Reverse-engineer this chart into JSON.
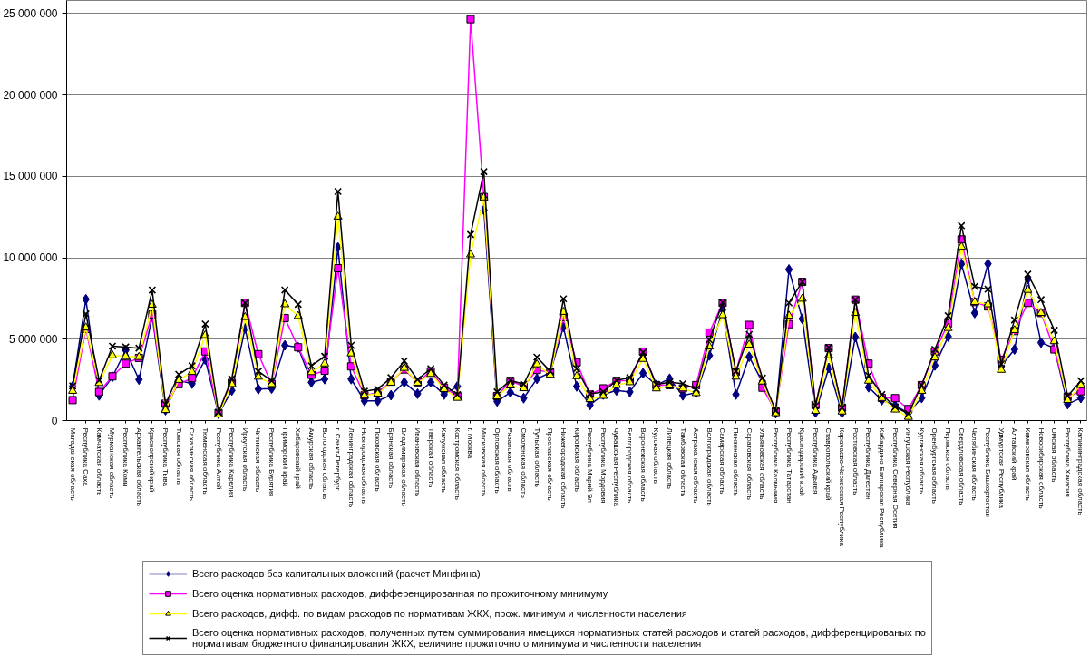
{
  "chart_data": {
    "type": "line",
    "categories": [
      "Магаданская область",
      "Республика Саха",
      "Камчатская область",
      "Мурманская область",
      "Республика Коми",
      "Архангельская область",
      "Красноярский край",
      "Республика Тыва",
      "Томская область",
      "Сахалинская область",
      "Тюменская область",
      "Республика Алтай",
      "Республика Карелия",
      "Иркутская область",
      "Читинская область",
      "Республика Бурятия",
      "Приморский край",
      "Хабаровский край",
      "Амурская область",
      "Вологодская область",
      "г. Санкт-Петербург",
      "Ленинградская область",
      "Новгородская область",
      "Псковская область",
      "Брянская область",
      "Владимирская область",
      "Ивановская область",
      "Тверская область",
      "Калужская область",
      "Костромская область",
      "г. Москва",
      "Московская область",
      "Орловская область",
      "Рязанская область",
      "Смоленская область",
      "Тульская область",
      "Ярославская область",
      "Нижегородская область",
      "Кировская область",
      "Республика Марий Эл",
      "Республика Мордовия",
      "Чувашская Республика",
      "Белгородская область",
      "Воронежская область",
      "Курская область",
      "Липецкая область",
      "Тамбовская область",
      "Астраханская область",
      "Волгоградская область",
      "Самарская область",
      "Пензенская область",
      "Саратовская область",
      "Ульяновская область",
      "Республика Калмыкия",
      "Республика Татарстан",
      "Краснодарский край",
      "Республика Адыгея",
      "Ставропольский край",
      "Карачаево-Черкесская Республика",
      "Ростовская область",
      "Республика Дагестан",
      "Кабардино-Балкарская Республика",
      "Республика Северная Осетия",
      "Ингушская Республика",
      "Курганская область",
      "Оренбургская область",
      "Пермская область",
      "Свердловская область",
      "Челябинская область",
      "Республика Башкортостан",
      "Удмуртская Республика",
      "Алтайский край",
      "Кемеровская область",
      "Новосибирская область",
      "Омская область",
      "Республика Хакасия",
      "Калининградская область"
    ],
    "series": [
      {
        "name": "Всего расходов без капитальных вложений (расчет Минфина)",
        "color": "#000080",
        "marker": "diamond",
        "values": [
          2100000,
          7450000,
          1550000,
          2690000,
          4320000,
          2520000,
          6390000,
          640000,
          2470000,
          2270000,
          3750000,
          420000,
          1850000,
          5660000,
          1930000,
          1970000,
          4620000,
          4500000,
          2350000,
          2550000,
          10640000,
          2550000,
          1210000,
          1210000,
          1560000,
          2350000,
          1650000,
          2350000,
          1600000,
          2100000,
          null,
          12940000,
          1180000,
          1730000,
          1380000,
          2570000,
          2940000,
          5750000,
          2100000,
          960000,
          1600000,
          1850000,
          1760000,
          2910000,
          2180000,
          2570000,
          1550000,
          1710000,
          4000000,
          6810000,
          1600000,
          3920000,
          2350000,
          450000,
          9280000,
          6250000,
          500000,
          3230000,
          470000,
          5130000,
          2050000,
          1260000,
          920000,
          470000,
          1390000,
          3390000,
          5160000,
          9630000,
          6610000,
          9630000,
          3360000,
          4370000,
          8690000,
          4790000,
          4450000,
          1010000,
          1390000
        ]
      },
      {
        "name": "Всего оценка нормативных расходов, дифференцированная по прожиточному минимуму",
        "color": "#ff00ff",
        "marker": "square",
        "values": [
          1260000,
          5630000,
          1760000,
          2720000,
          3500000,
          3850000,
          6520000,
          1040000,
          2240000,
          2610000,
          4250000,
          470000,
          2320000,
          7230000,
          4080000,
          2240000,
          6300000,
          4500000,
          2810000,
          3060000,
          9360000,
          3330000,
          1550000,
          1710000,
          2390000,
          3140000,
          2350000,
          3030000,
          2020000,
          1510000,
          24650000,
          13730000,
          1510000,
          2440000,
          2100000,
          3110000,
          2970000,
          6350000,
          3580000,
          1600000,
          1980000,
          2440000,
          2470000,
          4240000,
          2180000,
          2180000,
          1970000,
          2180000,
          5410000,
          7230000,
          2990000,
          5880000,
          2020000,
          550000,
          5920000,
          8520000,
          960000,
          4450000,
          790000,
          7430000,
          3500000,
          1390000,
          1380000,
          710000,
          2180000,
          4250000,
          5970000,
          11130000,
          7280000,
          7010000,
          3730000,
          5500000,
          7230000,
          6610000,
          4370000,
          1460000,
          1800000
        ]
      },
      {
        "name": "Всего расходов, дифф. по видам расходов по нормативам ЖКХ, прож. минимум и численности населения",
        "color": "#ffff00",
        "marker": "triangle",
        "values": [
          1820000,
          5710000,
          2300000,
          4000000,
          3950000,
          3900000,
          7110000,
          640000,
          2490000,
          2990000,
          5240000,
          370000,
          2240000,
          6350000,
          2690000,
          2240000,
          7140000,
          6420000,
          2970000,
          3500000,
          12520000,
          4120000,
          1550000,
          1650000,
          2320000,
          3230000,
          2320000,
          2860000,
          1930000,
          1390000,
          10200000,
          13700000,
          1480000,
          2150000,
          1980000,
          3450000,
          2810000,
          6670000,
          2720000,
          1310000,
          1510000,
          2180000,
          2350000,
          3780000,
          1970000,
          2150000,
          1970000,
          1680000,
          4540000,
          6470000,
          2690000,
          4660000,
          2390000,
          450000,
          6440000,
          7480000,
          590000,
          4000000,
          550000,
          6610000,
          2440000,
          1380000,
          670000,
          220000,
          1820000,
          3870000,
          5680000,
          10670000,
          7280000,
          7140000,
          3110000,
          5550000,
          8020000,
          6610000,
          4870000,
          1260000,
          2180000
        ]
      },
      {
        "name": "Всего оценка нормативных расходов, полученных путем суммирования имещихся нормативных статей расходов и статей расходов, дифференцированых по нормативам бюджетного финансирования ЖКХ, величине прожиточного минимума и численности населения",
        "color": "#000000",
        "marker": "cross",
        "values": [
          2130000,
          6550000,
          2470000,
          4570000,
          4520000,
          4450000,
          8020000,
          1000000,
          2840000,
          3360000,
          5930000,
          500000,
          2570000,
          7230000,
          3030000,
          2440000,
          8020000,
          7140000,
          3360000,
          3950000,
          14070000,
          4620000,
          1800000,
          1930000,
          2640000,
          3660000,
          2520000,
          3190000,
          2180000,
          1600000,
          11430000,
          15290000,
          1760000,
          2470000,
          2240000,
          3900000,
          3030000,
          7480000,
          3190000,
          1650000,
          1760000,
          2470000,
          2640000,
          4200000,
          2220000,
          2350000,
          2270000,
          1930000,
          4960000,
          7260000,
          3030000,
          5290000,
          2610000,
          600000,
          7230000,
          8520000,
          920000,
          4490000,
          790000,
          7430000,
          2770000,
          1600000,
          840000,
          420000,
          2180000,
          4370000,
          6440000,
          11970000,
          8240000,
          8070000,
          3480000,
          6180000,
          8990000,
          7430000,
          5550000,
          1510000,
          2440000
        ]
      }
    ],
    "ylim": [
      0,
      25800000
    ],
    "yticks": [
      0,
      {
        "value": 5000000,
        "label": "5 000 000"
      },
      {
        "value": 10000000,
        "label": "10 000 000"
      },
      {
        "value": 15000000,
        "label": "15 000 000"
      },
      {
        "value": 20000000,
        "label": "20 000 000"
      },
      {
        "value": 25000000,
        "label": "25 000 000"
      }
    ],
    "grid": "y",
    "legend": "bottom"
  }
}
